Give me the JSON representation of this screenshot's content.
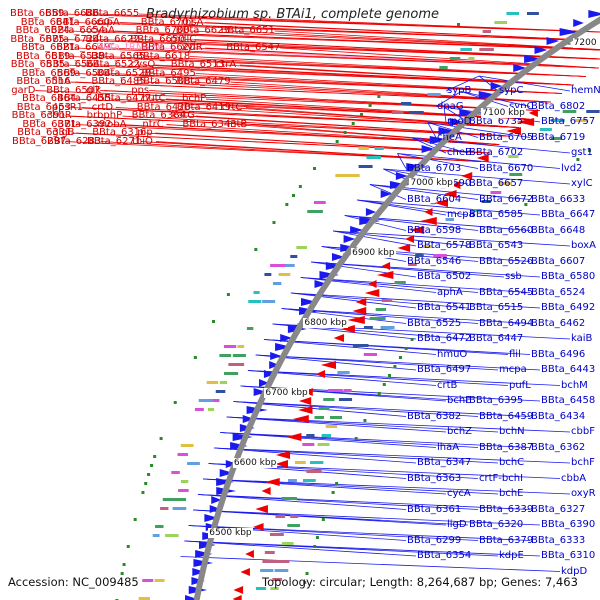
{
  "title": "Bradyrhizobium sp. BTAi1, complete genome",
  "footer": {
    "accession": "Accession: NC_009485",
    "topology": "Topology: circular; Length: 8,264,687 bp; Genes: 7,463"
  },
  "colors": {
    "forward_strand": "#ee0000",
    "reverse_strand": "#1a1aee",
    "backbone": "#888888",
    "trna": "#ff8fd0"
  },
  "scale_ticks": [
    "7200 kbp",
    "7100 kbp",
    "7000 kbp",
    "6900 kbp",
    "6800 kbp",
    "6700 kbp",
    "6600 kbp",
    "6500 kbp"
  ],
  "left_labels": [
    {
      "text": "BBta_6659",
      "c": "red"
    },
    {
      "text": "BBta_6686",
      "c": "red"
    },
    {
      "text": "BBta_6655",
      "c": "red"
    },
    {
      "text": "BBta_6641",
      "c": "red"
    },
    {
      "text": "BBta_6660",
      "c": "red"
    },
    {
      "text": "cspA",
      "c": "red"
    },
    {
      "text": "BBta_6701",
      "c": "red"
    },
    {
      "text": "rbsA",
      "c": "red"
    },
    {
      "text": "BBta_6624",
      "c": "red"
    },
    {
      "text": "BBta_6654",
      "c": "red"
    },
    {
      "text": "cyaA",
      "c": "red"
    },
    {
      "text": "BBta_6700",
      "c": "red"
    },
    {
      "text": "BBta_6623",
      "c": "red"
    },
    {
      "text": "BBta_6651",
      "c": "red"
    },
    {
      "text": "BBta_6675",
      "c": "red"
    },
    {
      "text": "BBta_6724",
      "c": "red"
    },
    {
      "text": "BBta_6622",
      "c": "red"
    },
    {
      "text": "BBta_6650",
      "c": "red"
    },
    {
      "text": "mdlC",
      "c": "red"
    },
    {
      "text": "BBta_6621",
      "c": "red"
    },
    {
      "text": "BBta_6649",
      "c": "red"
    },
    {
      "text": "BBta_tRNA28",
      "c": "pink"
    },
    {
      "text": "BBta_6620",
      "c": "red"
    },
    {
      "text": "xylR",
      "c": "red"
    },
    {
      "text": "BBta_6547",
      "c": "red"
    },
    {
      "text": "BBta_6619",
      "c": "red"
    },
    {
      "text": "BBta_6539",
      "c": "red"
    },
    {
      "text": "BBta_6565",
      "c": "red"
    },
    {
      "text": "BBta_6618",
      "c": "red"
    },
    {
      "text": "BBta_6535",
      "c": "red"
    },
    {
      "text": "BBta_6564",
      "c": "red"
    },
    {
      "text": "BBta_6522",
      "c": "red"
    },
    {
      "text": "cysQ",
      "c": "red"
    },
    {
      "text": "BBta_6513",
      "c": "red"
    },
    {
      "text": "ctrA",
      "c": "red"
    },
    {
      "text": "BBta_6569",
      "c": "red"
    },
    {
      "text": "BBta_6504",
      "c": "red"
    },
    {
      "text": "BBta_6528",
      "c": "red"
    },
    {
      "text": "BBta_6495",
      "c": "red"
    },
    {
      "text": "BBta_6516",
      "c": "red"
    },
    {
      "text": "flhA",
      "c": "red"
    },
    {
      "text": "BBta_6485",
      "c": "red"
    },
    {
      "text": "BBta_6508",
      "c": "red"
    },
    {
      "text": "BBta_6479",
      "c": "red"
    },
    {
      "text": "garD",
      "c": "red"
    },
    {
      "text": "BBta_6507",
      "c": "red"
    },
    {
      "text": "glk",
      "c": "red"
    },
    {
      "text": "pps",
      "c": "red"
    },
    {
      "text": "BBta_6464",
      "c": "red"
    },
    {
      "text": "BBta_6455",
      "c": "red"
    },
    {
      "text": "BBta_6477",
      "c": "red"
    },
    {
      "text": "hutC",
      "c": "red"
    },
    {
      "text": "bchP",
      "c": "red"
    },
    {
      "text": "BBta_6453",
      "c": "red"
    },
    {
      "text": "ppsR1",
      "c": "red"
    },
    {
      "text": "crtD",
      "c": "red"
    },
    {
      "text": "BBta_6420",
      "c": "red"
    },
    {
      "text": "BBta_6419",
      "c": "red"
    },
    {
      "text": "crtC",
      "c": "red"
    },
    {
      "text": "BBta_6391",
      "c": "red"
    },
    {
      "text": "cbbR",
      "c": "red"
    },
    {
      "text": "brbphP",
      "c": "red"
    },
    {
      "text": "BBta_6384",
      "c": "red"
    },
    {
      "text": "katG",
      "c": "red"
    },
    {
      "text": "BBta_6371",
      "c": "red"
    },
    {
      "text": "BBta_6392",
      "c": "red"
    },
    {
      "text": "mobA",
      "c": "red"
    },
    {
      "text": "ntrC",
      "c": "red"
    },
    {
      "text": "BBta_6343",
      "c": "red"
    },
    {
      "text": "intB",
      "c": "red"
    },
    {
      "text": "BBta_6331",
      "c": "red"
    },
    {
      "text": "glgB",
      "c": "red"
    },
    {
      "text": "BBta_6316",
      "c": "red"
    },
    {
      "text": "pip",
      "c": "red"
    },
    {
      "text": "BBta_6297",
      "c": "red"
    },
    {
      "text": "BBta_6283",
      "c": "red"
    },
    {
      "text": "BBta_6271",
      "c": "red"
    },
    {
      "text": "thiO",
      "c": "red"
    }
  ],
  "right_labels": [
    {
      "text": "hemN"
    },
    {
      "text": "sypC"
    },
    {
      "text": "sypB"
    },
    {
      "text": "BBta_6802"
    },
    {
      "text": "sypC"
    },
    {
      "text": "dnaG"
    },
    {
      "text": "BBta_6757"
    },
    {
      "text": "BBta_6735"
    },
    {
      "text": "rpoD"
    },
    {
      "text": "BBta_6719"
    },
    {
      "text": "BBta_6705"
    },
    {
      "text": "cheA"
    },
    {
      "text": "gst1"
    },
    {
      "text": "BBta_6702"
    },
    {
      "text": "cheB"
    },
    {
      "text": "lvd2"
    },
    {
      "text": "BBta_6670"
    },
    {
      "text": "BBta_6703"
    },
    {
      "text": "xylC"
    },
    {
      "text": "BBta_6657"
    },
    {
      "text": "BBta_6690"
    },
    {
      "text": "BBta_6633"
    },
    {
      "text": "BBta_6672"
    },
    {
      "text": "BBta_6604"
    },
    {
      "text": "BBta_6647"
    },
    {
      "text": "BBta_6585"
    },
    {
      "text": "mcpa"
    },
    {
      "text": "BBta_6648"
    },
    {
      "text": "BBta_6560"
    },
    {
      "text": "BBta_6598"
    },
    {
      "text": "boxA"
    },
    {
      "text": "BBta_6543"
    },
    {
      "text": "BBta_6578"
    },
    {
      "text": "BBta_6607"
    },
    {
      "text": "BBta_6526"
    },
    {
      "text": "BBta_6546"
    },
    {
      "text": "BBta_6580"
    },
    {
      "text": "ssb"
    },
    {
      "text": "BBta_6502"
    },
    {
      "text": "BBta_6524"
    },
    {
      "text": "BBta_6545"
    },
    {
      "text": "aphA"
    },
    {
      "text": "BBta_6492"
    },
    {
      "text": "BBta_6515"
    },
    {
      "text": "BBta_6541"
    },
    {
      "text": "BBta_6462"
    },
    {
      "text": "BBta_6494"
    },
    {
      "text": "BBta_6525"
    },
    {
      "text": "kaiB"
    },
    {
      "text": "BBta_6447"
    },
    {
      "text": "BBta_6472"
    },
    {
      "text": "BBta_6496"
    },
    {
      "text": "flil"
    },
    {
      "text": "hmuO"
    },
    {
      "text": "BBta_6443"
    },
    {
      "text": "mcpa"
    },
    {
      "text": "BBta_6497"
    },
    {
      "text": "bchM"
    },
    {
      "text": "pufL"
    },
    {
      "text": "crtB"
    },
    {
      "text": "BBta_6458"
    },
    {
      "text": "BBta_6395"
    },
    {
      "text": "bchE"
    },
    {
      "text": "BBta_6434"
    },
    {
      "text": "BBta_6459"
    },
    {
      "text": "BBta_6382"
    },
    {
      "text": "cbbF"
    },
    {
      "text": "bchN"
    },
    {
      "text": "bchZ"
    },
    {
      "text": "BBta_6362"
    },
    {
      "text": "BBta_6387"
    },
    {
      "text": "lhaA"
    },
    {
      "text": "bchF"
    },
    {
      "text": "bchC"
    },
    {
      "text": "BBta_6347"
    },
    {
      "text": "cbbA"
    },
    {
      "text": "crtF-bchI"
    },
    {
      "text": "BBta_6363"
    },
    {
      "text": "oxyR"
    },
    {
      "text": "bchE"
    },
    {
      "text": "cycA"
    },
    {
      "text": "BBta_6327"
    },
    {
      "text": "BBta_6339"
    },
    {
      "text": "BBta_6361"
    },
    {
      "text": "BBta_6390"
    },
    {
      "text": "BBta_6320"
    },
    {
      "text": "ligD"
    },
    {
      "text": "BBta_6333"
    },
    {
      "text": "BBta_6379"
    },
    {
      "text": "BBta_6299"
    },
    {
      "text": "BBta_6310"
    },
    {
      "text": "kdpE"
    },
    {
      "text": "BBta_6354"
    },
    {
      "text": "kdpD"
    }
  ]
}
